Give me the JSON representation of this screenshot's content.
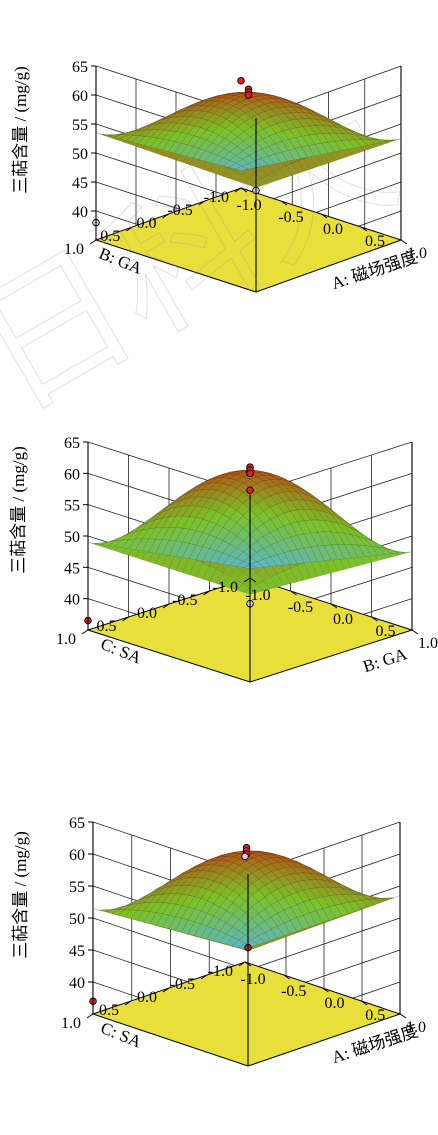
{
  "watermark": "日科大",
  "colors": {
    "floor": "#e8df3a",
    "axis": "#000000",
    "grid": "#222222",
    "surface_low": "#58b4e6",
    "surface_mid": "#7cc22a",
    "surface_high": "#b84a14",
    "point_above": "#e02020",
    "point_below": "#e7c6e8"
  },
  "chart_data": [
    {
      "type": "surface",
      "zlabel": "三萜含量 / (mg/g)",
      "zticks": [
        "40",
        "45",
        "50",
        "55",
        "60",
        "65"
      ],
      "zlim": [
        35,
        65
      ],
      "xlabel": "A: 磁场强度",
      "ylabel": "B: GA",
      "xticks": [
        "-1.0",
        "-0.5",
        "0.0",
        "0.5",
        "1.0"
      ],
      "yticks": [
        "1.0",
        "0.5",
        "0.0",
        "-0.5",
        "-1.0"
      ],
      "xlim": [
        -1,
        1
      ],
      "ylim": [
        -1,
        1
      ],
      "surface_values": {
        "center": 60.5,
        "corner_left": 53.5,
        "corner_right": 52.5,
        "corner_back": 53,
        "corner_front": 38
      },
      "design_points": [
        {
          "x": 0,
          "y": 0,
          "z": 61.0,
          "position": "above"
        },
        {
          "x": 0,
          "y": 0,
          "z": 60.5,
          "position": "above"
        },
        {
          "x": 0,
          "y": 0,
          "z": 60.0,
          "position": "above"
        },
        {
          "x": -1,
          "y": 1,
          "z": 53.5,
          "position": "above"
        },
        {
          "x": 1,
          "y": -1,
          "z": 52.5,
          "position": "below"
        },
        {
          "x": -1,
          "y": -1,
          "z": 38.0,
          "position": "below"
        }
      ]
    },
    {
      "type": "surface",
      "zlabel": "三萜含量 / (mg/g)",
      "zticks": [
        "40",
        "45",
        "50",
        "55",
        "60",
        "65"
      ],
      "zlim": [
        35,
        65
      ],
      "xlabel": "B: GA",
      "ylabel": "C: SA",
      "xticks": [
        "-1.0",
        "-0.5",
        "0.0",
        "0.5",
        "1.0"
      ],
      "yticks": [
        "1.0",
        "0.5",
        "0.0",
        "-0.5",
        "-1.0"
      ],
      "xlim": [
        -1,
        1
      ],
      "ylim": [
        -1,
        1
      ],
      "surface_values": {
        "center": 60.5,
        "corner_left": 49,
        "corner_right": 47.5,
        "corner_back": 49,
        "corner_front": 36.5
      },
      "design_points": [
        {
          "x": 0,
          "y": 0,
          "z": 61.0,
          "position": "above"
        },
        {
          "x": 0,
          "y": 0,
          "z": 60.5,
          "position": "above"
        },
        {
          "x": 0,
          "y": 0,
          "z": 60.0,
          "position": "above"
        },
        {
          "x": -1,
          "y": 1,
          "z": 49.0,
          "position": "above"
        },
        {
          "x": 1,
          "y": -1,
          "z": 47.5,
          "position": "below"
        },
        {
          "x": -1,
          "y": -1,
          "z": 36.5,
          "position": "above"
        }
      ]
    },
    {
      "type": "surface",
      "zlabel": "三萜含量 / (mg/g)",
      "zticks": [
        "40",
        "45",
        "50",
        "55",
        "60",
        "65"
      ],
      "zlim": [
        35,
        65
      ],
      "xlabel": "A: 磁场强度",
      "ylabel": "C: SA",
      "xticks": [
        "-1.0",
        "-0.5",
        "0.0",
        "0.5",
        "1.0"
      ],
      "yticks": [
        "1.0",
        "0.5",
        "0.0",
        "-0.5",
        "-1.0"
      ],
      "xlim": [
        -1,
        1
      ],
      "ylim": [
        -1,
        1
      ],
      "surface_values": {
        "center": 60.5,
        "corner_left": 51.5,
        "corner_right": 53.5,
        "corner_back": 53,
        "corner_front": 37
      },
      "design_points": [
        {
          "x": 0,
          "y": 0,
          "z": 61.0,
          "position": "above"
        },
        {
          "x": 0,
          "y": 0,
          "z": 60.5,
          "position": "above"
        },
        {
          "x": 0,
          "y": 0,
          "z": 60.0,
          "position": "above"
        },
        {
          "x": -1,
          "y": 1,
          "z": 51.5,
          "position": "below"
        },
        {
          "x": 1,
          "y": -1,
          "z": 53.5,
          "position": "above"
        },
        {
          "x": -1,
          "y": -1,
          "z": 37.0,
          "position": "above"
        }
      ]
    }
  ]
}
